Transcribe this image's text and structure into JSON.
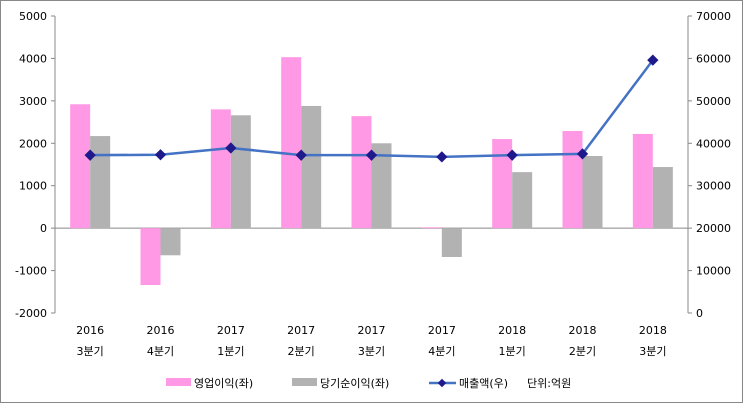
{
  "chart_data": {
    "type": "bar+line",
    "categories": [
      [
        "2016",
        "3분기"
      ],
      [
        "2016",
        "4분기"
      ],
      [
        "2017",
        "1분기"
      ],
      [
        "2017",
        "2분기"
      ],
      [
        "2017",
        "3분기"
      ],
      [
        "2017",
        "4분기"
      ],
      [
        "2018",
        "1분기"
      ],
      [
        "2018",
        "2분기"
      ],
      [
        "2018",
        "3분기"
      ]
    ],
    "series": [
      {
        "name": "영업이익(좌)",
        "type": "bar",
        "axis": "left",
        "color": "#FF99E6",
        "values": [
          2920,
          -1340,
          2800,
          4030,
          2640,
          20,
          2100,
          2290,
          2220
        ]
      },
      {
        "name": "당기순이익(좌)",
        "type": "bar",
        "axis": "left",
        "color": "#B2B2B2",
        "values": [
          2170,
          -640,
          2660,
          2880,
          2000,
          -680,
          1320,
          1700,
          1440
        ]
      },
      {
        "name": "매출액(우)",
        "type": "line",
        "axis": "right",
        "color": "#4472C4",
        "marker_color": "#1F1A8C",
        "values": [
          37200,
          37300,
          38900,
          37200,
          37200,
          36800,
          37200,
          37500,
          59600
        ]
      }
    ],
    "left_axis": {
      "min": -2000,
      "max": 5000,
      "ticks": [
        "-2000",
        "-1000",
        "0",
        "1000",
        "2000",
        "3000",
        "4000",
        "5000"
      ]
    },
    "right_axis": {
      "min": 0,
      "max": 70000,
      "ticks": [
        "0",
        "10000",
        "20000",
        "30000",
        "40000",
        "50000",
        "60000",
        "70000"
      ]
    },
    "unit_note": "단위:억원",
    "legend_position": "bottom"
  }
}
